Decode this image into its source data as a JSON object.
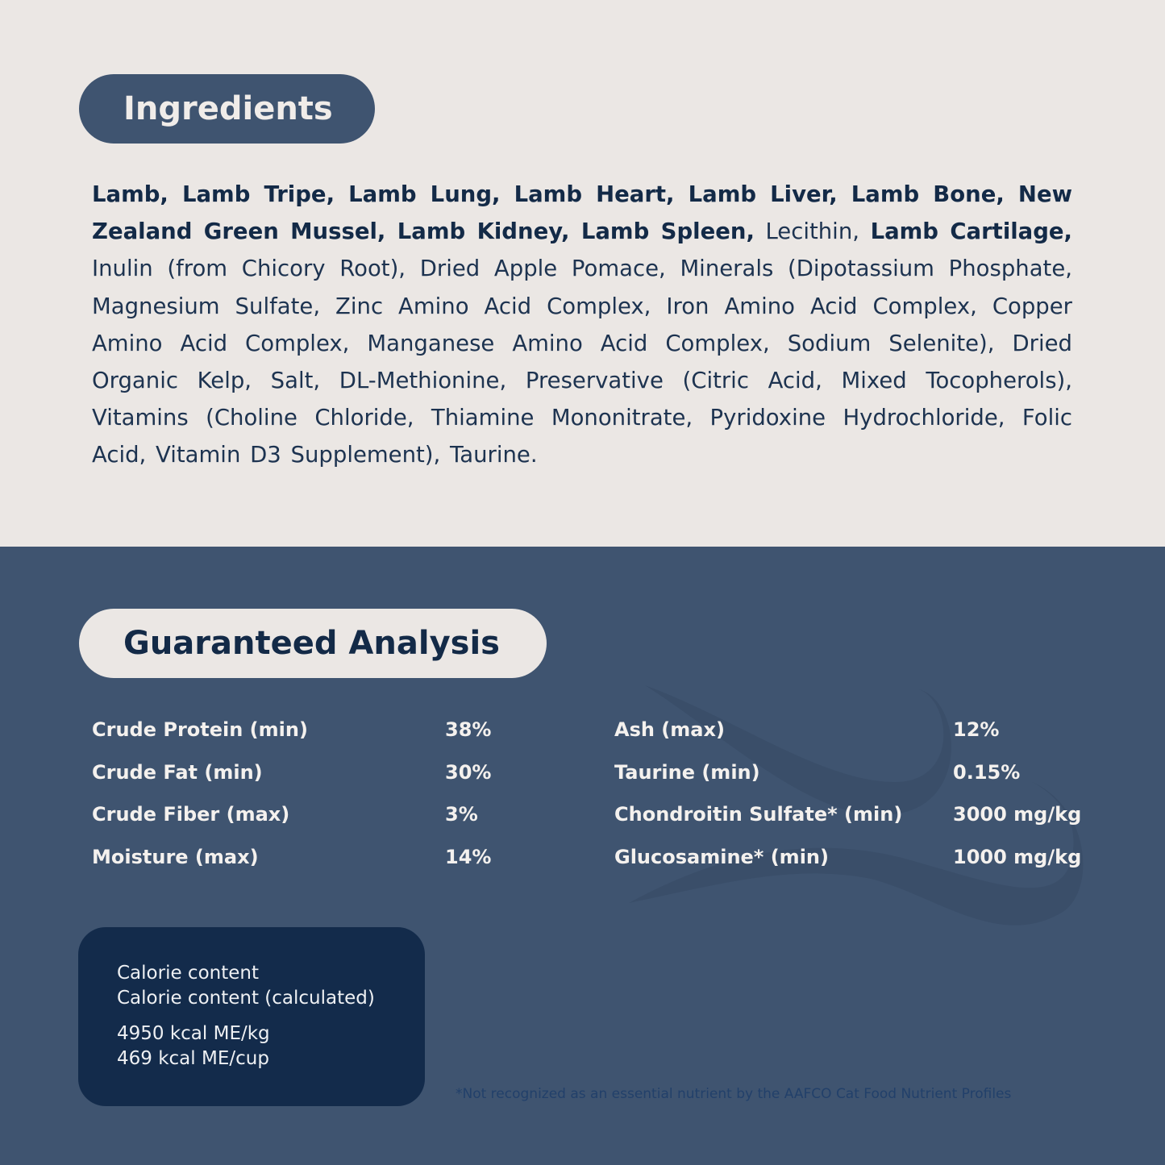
{
  "ingredients": {
    "title": "Ingredients",
    "segments": [
      {
        "text": "Lamb, Lamb Tripe, Lamb Lung, Lamb Heart, Lamb Liver, Lamb Bone, New Zealand Green Mussel, Lamb Kidney, Lamb Spleen,",
        "bold": true
      },
      {
        "text": " Lecithin, ",
        "bold": false
      },
      {
        "text": "Lamb Cartilage,",
        "bold": true
      },
      {
        "text": " Inulin (from Chicory Root), Dried Apple Pomace, Minerals (Dipotassium Phosphate, Magnesium Sulfate, Zinc Amino Acid Complex, Iron Amino Acid Complex, Copper Amino Acid Complex, Manganese Amino Acid Complex, Sodium Selenite), Dried Organic Kelp, Salt, DL-Methionine, Preservative (Citric Acid, Mixed Tocopherols), Vitamins (Choline Chloride, Thiamine Mononitrate, Pyridoxine Hydrochloride, Folic Acid, Vitamin D3 Supplement), Taurine.",
        "bold": false
      }
    ]
  },
  "analysis": {
    "title": "Guaranteed Analysis",
    "left": [
      {
        "label": "Crude Protein (min)",
        "value": "38%"
      },
      {
        "label": "Crude Fat (min)",
        "value": "30%"
      },
      {
        "label": "Crude Fiber (max)",
        "value": "3%"
      },
      {
        "label": "Moisture (max)",
        "value": "14%"
      }
    ],
    "right": [
      {
        "label": "Ash (max)",
        "value": "12%"
      },
      {
        "label": "Taurine (min)",
        "value": "0.15%"
      },
      {
        "label": "Chondroitin Sulfate* (min)",
        "value": "3000 mg/kg"
      },
      {
        "label": "Glucosamine* (min)",
        "value": "1000 mg/kg"
      }
    ]
  },
  "calorie": {
    "line1": "Calorie content",
    "line2": "Calorie content (calculated)",
    "value1": "4950 kcal ME/kg",
    "value2": "469 kcal ME/cup"
  },
  "footnote": "*Not recognized as an essential nutrient by the AAFCO Cat Food Nutrient Profiles",
  "colors": {
    "light_bg": "#ebe7e4",
    "slate_blue": "#3f5470",
    "navy": "#132b4b"
  },
  "watermark_icon": "wave-icon"
}
